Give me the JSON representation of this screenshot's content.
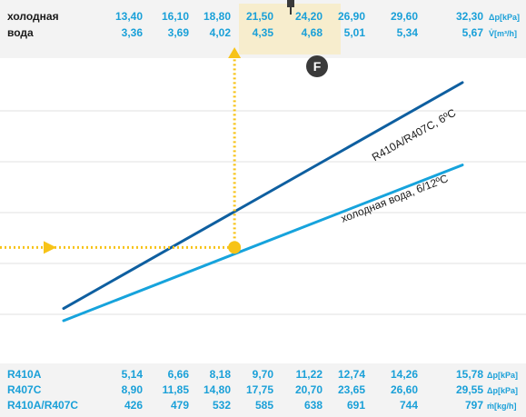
{
  "chart_data": {
    "type": "line",
    "top_axis": {
      "label_line1": "холодная",
      "label_line2": "вода",
      "row1": [
        "13,40",
        "16,10",
        "18,80",
        "21,50",
        "24,20",
        "26,90",
        "29,60",
        "32,30"
      ],
      "row1_unit": "Δp[kPa]",
      "row2": [
        "3,36",
        "3,69",
        "4,02",
        "4,35",
        "4,68",
        "5,01",
        "5,34",
        "5,67"
      ],
      "row2_unit": "V̇[m³/h]"
    },
    "bottom_axis": {
      "rows": [
        {
          "label": "R410A",
          "values": [
            "5,14",
            "6,66",
            "8,18",
            "9,70",
            "11,22",
            "12,74",
            "14,26",
            "15,78"
          ],
          "unit": "Δp[kPa]"
        },
        {
          "label": "R407C",
          "values": [
            "8,90",
            "11,85",
            "14,80",
            "17,75",
            "20,70",
            "23,65",
            "26,60",
            "29,55"
          ],
          "unit": "Δp[kPa]"
        },
        {
          "label": "R410A/R407C",
          "values": [
            "426",
            "479",
            "532",
            "585",
            "638",
            "691",
            "744",
            "797"
          ],
          "unit": "ṁ[kg/h]"
        }
      ]
    },
    "series": [
      {
        "name": "R410A/R407C, 6ºC",
        "color": "#0e5fa0",
        "x": [
          426,
          797
        ],
        "y": [
          0.18,
          0.92
        ]
      },
      {
        "name": "холодная вода, 6/12ºC",
        "color": "#16a3dc",
        "x": [
          426,
          797
        ],
        "y": [
          0.14,
          0.65
        ]
      }
    ],
    "operating_point": {
      "x": 585,
      "y": 0.38,
      "marker": "F",
      "color": "#f7c318"
    },
    "grid": true
  }
}
